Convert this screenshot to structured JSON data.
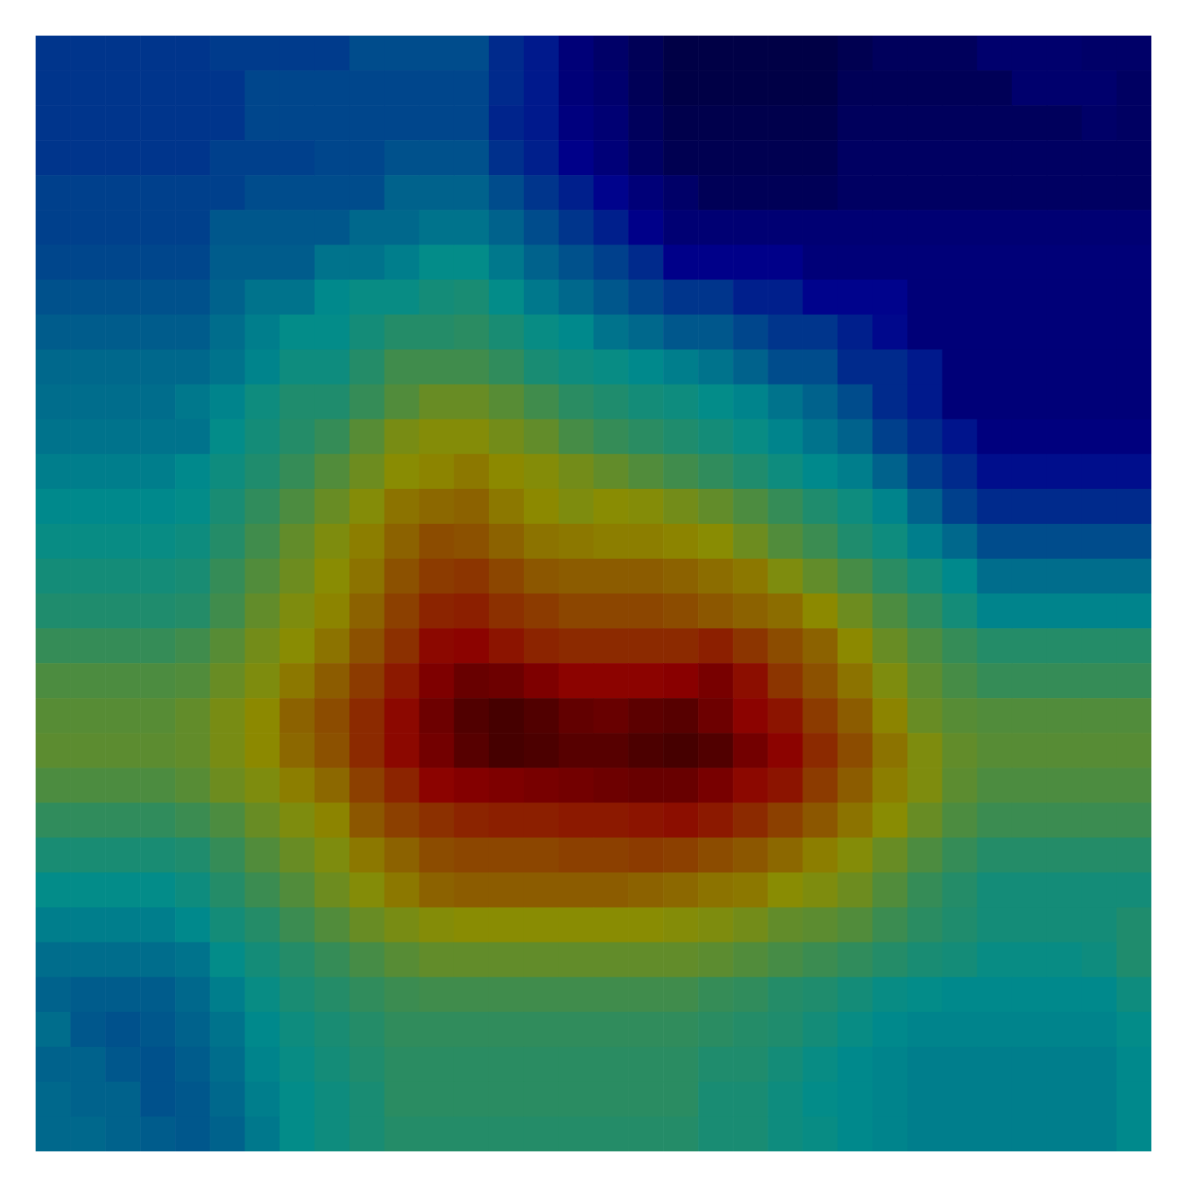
{
  "chart_data": {
    "type": "heatmap",
    "tick_labels": false,
    "color_range": [
      0,
      1
    ],
    "cells": [
      [
        0.22,
        0.22,
        0.22,
        0.22,
        0.22,
        0.23,
        0.23,
        0.23,
        0.23,
        0.26,
        0.26,
        0.26,
        0.26,
        0.2,
        0.17,
        0.09,
        0.06,
        0.03,
        0,
        0,
        0,
        0,
        0,
        0.02,
        0.04,
        0.04,
        0.04,
        0.07,
        0.07,
        0.07,
        0.06,
        0.06
      ],
      [
        0.22,
        0.22,
        0.22,
        0.22,
        0.22,
        0.22,
        0.25,
        0.25,
        0.25,
        0.25,
        0.25,
        0.25,
        0.25,
        0.2,
        0.17,
        0.09,
        0.07,
        0.03,
        0,
        0,
        0,
        0,
        0,
        0.03,
        0.03,
        0.03,
        0.03,
        0.03,
        0.07,
        0.07,
        0.07,
        0.05
      ],
      [
        0.22,
        0.22,
        0.22,
        0.22,
        0.22,
        0.22,
        0.25,
        0.25,
        0.25,
        0.25,
        0.25,
        0.25,
        0.25,
        0.19,
        0.17,
        0.1,
        0.08,
        0.04,
        0.01,
        0.01,
        0.01,
        0.01,
        0.01,
        0.04,
        0.04,
        0.04,
        0.04,
        0.04,
        0.04,
        0.04,
        0.06,
        0.05
      ],
      [
        0.22,
        0.22,
        0.22,
        0.22,
        0.22,
        0.24,
        0.24,
        0.24,
        0.25,
        0.25,
        0.27,
        0.27,
        0.27,
        0.21,
        0.18,
        0.12,
        0.09,
        0.05,
        0.02,
        0.02,
        0.02,
        0.02,
        0.02,
        0.05,
        0.05,
        0.05,
        0.05,
        0.05,
        0.05,
        0.05,
        0.05,
        0.05
      ],
      [
        0.24,
        0.24,
        0.24,
        0.24,
        0.24,
        0.24,
        0.26,
        0.26,
        0.26,
        0.26,
        0.3,
        0.3,
        0.3,
        0.26,
        0.22,
        0.18,
        0.13,
        0.09,
        0.06,
        0.03,
        0.03,
        0.03,
        0.03,
        0.05,
        0.05,
        0.05,
        0.05,
        0.05,
        0.05,
        0.05,
        0.05,
        0.05
      ],
      [
        0.24,
        0.24,
        0.24,
        0.24,
        0.24,
        0.28,
        0.28,
        0.28,
        0.28,
        0.31,
        0.31,
        0.33,
        0.33,
        0.3,
        0.26,
        0.22,
        0.18,
        0.12,
        0.08,
        0.08,
        0.08,
        0.08,
        0.08,
        0.08,
        0.08,
        0.08,
        0.08,
        0.08,
        0.08,
        0.08,
        0.08,
        0.08
      ],
      [
        0.25,
        0.25,
        0.25,
        0.25,
        0.25,
        0.29,
        0.29,
        0.29,
        0.33,
        0.33,
        0.35,
        0.38,
        0.38,
        0.34,
        0.3,
        0.27,
        0.24,
        0.2,
        0.12,
        0.12,
        0.12,
        0.12,
        0.09,
        0.09,
        0.09,
        0.09,
        0.09,
        0.09,
        0.09,
        0.09,
        0.09,
        0.09
      ],
      [
        0.27,
        0.27,
        0.27,
        0.27,
        0.27,
        0.3,
        0.33,
        0.33,
        0.37,
        0.39,
        0.39,
        0.41,
        0.42,
        0.38,
        0.34,
        0.31,
        0.28,
        0.25,
        0.22,
        0.22,
        0.18,
        0.18,
        0.13,
        0.13,
        0.13,
        0.09,
        0.09,
        0.09,
        0.09,
        0.09,
        0.09,
        0.09
      ],
      [
        0.29,
        0.29,
        0.29,
        0.29,
        0.29,
        0.32,
        0.35,
        0.38,
        0.38,
        0.41,
        0.44,
        0.44,
        0.45,
        0.42,
        0.39,
        0.37,
        0.33,
        0.31,
        0.28,
        0.28,
        0.25,
        0.22,
        0.22,
        0.18,
        0.14,
        0.09,
        0.09,
        0.09,
        0.09,
        0.09,
        0.09,
        0.09
      ],
      [
        0.31,
        0.31,
        0.31,
        0.31,
        0.31,
        0.33,
        0.36,
        0.4,
        0.4,
        0.44,
        0.49,
        0.49,
        0.49,
        0.46,
        0.42,
        0.4,
        0.39,
        0.37,
        0.35,
        0.33,
        0.3,
        0.26,
        0.26,
        0.2,
        0.2,
        0.17,
        0.09,
        0.09,
        0.09,
        0.09,
        0.09,
        0.09
      ],
      [
        0.32,
        0.32,
        0.32,
        0.32,
        0.34,
        0.36,
        0.4,
        0.43,
        0.43,
        0.47,
        0.52,
        0.56,
        0.56,
        0.53,
        0.49,
        0.45,
        0.43,
        0.41,
        0.4,
        0.38,
        0.36,
        0.33,
        0.3,
        0.26,
        0.2,
        0.17,
        0.09,
        0.09,
        0.09,
        0.09,
        0.09,
        0.09
      ],
      [
        0.33,
        0.33,
        0.33,
        0.33,
        0.33,
        0.38,
        0.41,
        0.44,
        0.47,
        0.53,
        0.59,
        0.61,
        0.61,
        0.58,
        0.55,
        0.5,
        0.47,
        0.45,
        0.43,
        0.41,
        0.39,
        0.36,
        0.33,
        0.3,
        0.24,
        0.2,
        0.16,
        0.1,
        0.1,
        0.1,
        0.1,
        0.1
      ],
      [
        0.35,
        0.35,
        0.35,
        0.35,
        0.37,
        0.4,
        0.43,
        0.47,
        0.52,
        0.57,
        0.62,
        0.64,
        0.66,
        0.63,
        0.61,
        0.58,
        0.55,
        0.52,
        0.49,
        0.46,
        0.43,
        0.4,
        0.37,
        0.35,
        0.3,
        0.24,
        0.2,
        0.15,
        0.15,
        0.15,
        0.15,
        0.15
      ],
      [
        0.37,
        0.37,
        0.37,
        0.37,
        0.38,
        0.42,
        0.46,
        0.51,
        0.56,
        0.61,
        0.67,
        0.69,
        0.7,
        0.66,
        0.63,
        0.6,
        0.62,
        0.61,
        0.58,
        0.55,
        0.51,
        0.47,
        0.43,
        0.4,
        0.36,
        0.3,
        0.24,
        0.2,
        0.2,
        0.2,
        0.2,
        0.2
      ],
      [
        0.39,
        0.39,
        0.39,
        0.39,
        0.4,
        0.44,
        0.49,
        0.55,
        0.6,
        0.65,
        0.7,
        0.74,
        0.73,
        0.7,
        0.67,
        0.66,
        0.65,
        0.65,
        0.64,
        0.62,
        0.57,
        0.52,
        0.48,
        0.43,
        0.4,
        0.35,
        0.31,
        0.26,
        0.26,
        0.26,
        0.26,
        0.26
      ],
      [
        0.41,
        0.41,
        0.41,
        0.41,
        0.42,
        0.47,
        0.52,
        0.57,
        0.62,
        0.67,
        0.73,
        0.77,
        0.78,
        0.75,
        0.72,
        0.71,
        0.71,
        0.71,
        0.7,
        0.68,
        0.66,
        0.6,
        0.55,
        0.5,
        0.45,
        0.41,
        0.37,
        0.32,
        0.32,
        0.32,
        0.32,
        0.32
      ],
      [
        0.43,
        0.43,
        0.43,
        0.43,
        0.44,
        0.49,
        0.55,
        0.6,
        0.64,
        0.7,
        0.76,
        0.81,
        0.82,
        0.79,
        0.77,
        0.75,
        0.75,
        0.75,
        0.74,
        0.72,
        0.7,
        0.68,
        0.63,
        0.57,
        0.51,
        0.46,
        0.41,
        0.36,
        0.36,
        0.36,
        0.36,
        0.36
      ],
      [
        0.47,
        0.47,
        0.47,
        0.47,
        0.49,
        0.53,
        0.58,
        0.62,
        0.67,
        0.73,
        0.79,
        0.86,
        0.87,
        0.84,
        0.81,
        0.8,
        0.8,
        0.8,
        0.8,
        0.82,
        0.78,
        0.74,
        0.7,
        0.63,
        0.56,
        0.51,
        0.47,
        0.44,
        0.44,
        0.44,
        0.44,
        0.44
      ],
      [
        0.51,
        0.51,
        0.51,
        0.51,
        0.52,
        0.56,
        0.6,
        0.66,
        0.71,
        0.77,
        0.83,
        0.9,
        0.94,
        0.93,
        0.9,
        0.87,
        0.87,
        0.87,
        0.88,
        0.91,
        0.85,
        0.78,
        0.73,
        0.67,
        0.6,
        0.54,
        0.5,
        0.47,
        0.47,
        0.47,
        0.47,
        0.47
      ],
      [
        0.53,
        0.53,
        0.53,
        0.53,
        0.55,
        0.59,
        0.63,
        0.7,
        0.74,
        0.8,
        0.86,
        0.93,
        0.98,
        1,
        0.98,
        0.95,
        0.94,
        0.96,
        0.97,
        0.93,
        0.87,
        0.84,
        0.77,
        0.71,
        0.64,
        0.56,
        0.53,
        0.52,
        0.52,
        0.52,
        0.52,
        0.52
      ],
      [
        0.54,
        0.54,
        0.54,
        0.54,
        0.55,
        0.59,
        0.63,
        0.69,
        0.73,
        0.8,
        0.86,
        0.92,
        0.97,
        1,
        0.99,
        0.97,
        0.97,
        0.99,
        1,
        0.98,
        0.92,
        0.87,
        0.8,
        0.74,
        0.67,
        0.6,
        0.55,
        0.53,
        0.53,
        0.53,
        0.53,
        0.53
      ],
      [
        0.51,
        0.51,
        0.51,
        0.51,
        0.53,
        0.57,
        0.6,
        0.65,
        0.69,
        0.76,
        0.81,
        0.87,
        0.89,
        0.9,
        0.91,
        0.92,
        0.93,
        0.94,
        0.94,
        0.91,
        0.86,
        0.84,
        0.77,
        0.71,
        0.65,
        0.6,
        0.54,
        0.51,
        0.51,
        0.51,
        0.51,
        0.51
      ],
      [
        0.46,
        0.46,
        0.46,
        0.46,
        0.48,
        0.51,
        0.56,
        0.6,
        0.64,
        0.72,
        0.76,
        0.79,
        0.81,
        0.82,
        0.82,
        0.83,
        0.83,
        0.84,
        0.85,
        0.83,
        0.8,
        0.76,
        0.72,
        0.67,
        0.62,
        0.56,
        0.51,
        0.48,
        0.48,
        0.48,
        0.48,
        0.48
      ],
      [
        0.42,
        0.42,
        0.42,
        0.42,
        0.43,
        0.47,
        0.52,
        0.56,
        0.6,
        0.66,
        0.7,
        0.74,
        0.75,
        0.75,
        0.75,
        0.76,
        0.76,
        0.77,
        0.76,
        0.74,
        0.72,
        0.69,
        0.65,
        0.61,
        0.56,
        0.51,
        0.47,
        0.44,
        0.44,
        0.44,
        0.44,
        0.44
      ],
      [
        0.38,
        0.38,
        0.38,
        0.38,
        0.4,
        0.44,
        0.48,
        0.52,
        0.57,
        0.61,
        0.66,
        0.7,
        0.71,
        0.71,
        0.71,
        0.71,
        0.71,
        0.7,
        0.69,
        0.67,
        0.66,
        0.62,
        0.6,
        0.57,
        0.52,
        0.47,
        0.44,
        0.41,
        0.41,
        0.41,
        0.41,
        0.41
      ],
      [
        0.35,
        0.35,
        0.35,
        0.35,
        0.37,
        0.41,
        0.44,
        0.48,
        0.52,
        0.56,
        0.59,
        0.61,
        0.62,
        0.62,
        0.62,
        0.62,
        0.62,
        0.62,
        0.61,
        0.6,
        0.58,
        0.55,
        0.54,
        0.52,
        0.48,
        0.45,
        0.43,
        0.41,
        0.41,
        0.41,
        0.41,
        0.43
      ],
      [
        0.32,
        0.32,
        0.32,
        0.32,
        0.33,
        0.38,
        0.41,
        0.44,
        0.47,
        0.5,
        0.53,
        0.55,
        0.55,
        0.55,
        0.55,
        0.55,
        0.55,
        0.55,
        0.55,
        0.54,
        0.52,
        0.5,
        0.48,
        0.46,
        0.44,
        0.42,
        0.41,
        0.39,
        0.39,
        0.39,
        0.4,
        0.43
      ],
      [
        0.3,
        0.29,
        0.29,
        0.29,
        0.31,
        0.35,
        0.39,
        0.42,
        0.44,
        0.46,
        0.48,
        0.49,
        0.49,
        0.49,
        0.49,
        0.49,
        0.49,
        0.49,
        0.49,
        0.47,
        0.46,
        0.44,
        0.43,
        0.41,
        0.39,
        0.38,
        0.37,
        0.37,
        0.37,
        0.37,
        0.37,
        0.4
      ],
      [
        0.32,
        0.28,
        0.27,
        0.28,
        0.3,
        0.33,
        0.37,
        0.4,
        0.42,
        0.44,
        0.46,
        0.46,
        0.46,
        0.46,
        0.46,
        0.46,
        0.46,
        0.46,
        0.46,
        0.45,
        0.44,
        0.43,
        0.41,
        0.39,
        0.37,
        0.36,
        0.36,
        0.36,
        0.36,
        0.36,
        0.36,
        0.38
      ],
      [
        0.3,
        0.3,
        0.28,
        0.27,
        0.29,
        0.32,
        0.36,
        0.39,
        0.41,
        0.43,
        0.45,
        0.45,
        0.45,
        0.45,
        0.45,
        0.45,
        0.45,
        0.45,
        0.45,
        0.43,
        0.43,
        0.41,
        0.39,
        0.37,
        0.36,
        0.35,
        0.35,
        0.35,
        0.35,
        0.35,
        0.35,
        0.37
      ],
      [
        0.31,
        0.3,
        0.3,
        0.27,
        0.28,
        0.31,
        0.35,
        0.38,
        0.4,
        0.42,
        0.45,
        0.45,
        0.45,
        0.45,
        0.45,
        0.45,
        0.45,
        0.45,
        0.45,
        0.42,
        0.42,
        0.4,
        0.38,
        0.37,
        0.36,
        0.35,
        0.35,
        0.35,
        0.35,
        0.35,
        0.35,
        0.37
      ],
      [
        0.31,
        0.31,
        0.3,
        0.29,
        0.28,
        0.3,
        0.34,
        0.38,
        0.4,
        0.42,
        0.44,
        0.44,
        0.44,
        0.44,
        0.44,
        0.44,
        0.44,
        0.44,
        0.44,
        0.42,
        0.42,
        0.4,
        0.39,
        0.37,
        0.36,
        0.35,
        0.35,
        0.35,
        0.35,
        0.35,
        0.35,
        0.37
      ]
    ]
  }
}
